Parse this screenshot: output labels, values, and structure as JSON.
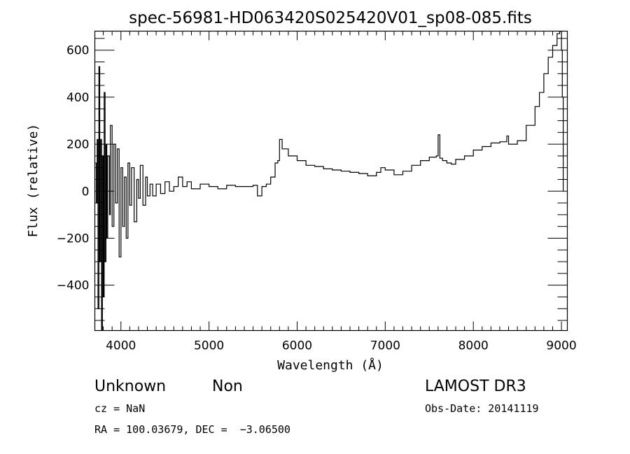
{
  "chart_data": {
    "type": "line",
    "title": "spec-56981-HD063420S025420V01_sp08-085.fits",
    "xlabel": "Wavelength (Å)",
    "ylabel": "Flux (relative)",
    "xlim": [
      3704,
      9067
    ],
    "ylim": [
      -593,
      681
    ],
    "xticks": [
      4000,
      5000,
      6000,
      7000,
      8000,
      9000
    ],
    "xtick_labels": [
      "4000",
      "5000",
      "6000",
      "7000",
      "8000",
      "9000"
    ],
    "xminor": 100,
    "yticks": [
      -400,
      -200,
      0,
      200,
      400,
      600
    ],
    "ytick_labels": [
      "−400",
      "−200",
      "0",
      "200",
      "400",
      "600"
    ],
    "yminor": 50,
    "grid": false,
    "series": [
      {
        "name": "spectrum",
        "color": "#000000",
        "x": [
          3710,
          3720,
          3730,
          3740,
          3750,
          3760,
          3770,
          3780,
          3790,
          3800,
          3810,
          3820,
          3830,
          3840,
          3850,
          3870,
          3880,
          3900,
          3920,
          3940,
          3960,
          3980,
          4000,
          4020,
          4040,
          4060,
          4080,
          4100,
          4120,
          4150,
          4180,
          4200,
          4220,
          4250,
          4280,
          4300,
          4330,
          4360,
          4400,
          4450,
          4500,
          4550,
          4600,
          4650,
          4700,
          4750,
          4800,
          4900,
          5000,
          5100,
          5200,
          5300,
          5400,
          5500,
          5550,
          5600,
          5650,
          5700,
          5750,
          5780,
          5800,
          5830,
          5900,
          6000,
          6100,
          6200,
          6300,
          6400,
          6500,
          6600,
          6700,
          6800,
          6900,
          6950,
          7000,
          7100,
          7200,
          7300,
          7400,
          7500,
          7580,
          7600,
          7620,
          7650,
          7700,
          7750,
          7800,
          7900,
          8000,
          8100,
          8200,
          8300,
          8380,
          8400,
          8500,
          8600,
          8700,
          8750,
          8800,
          8850,
          8900,
          8950,
          8980,
          9000,
          9010,
          9020
        ],
        "y": [
          120,
          -50,
          220,
          -500,
          530,
          -300,
          220,
          -590,
          150,
          -450,
          420,
          -300,
          200,
          -200,
          150,
          -100,
          280,
          -150,
          200,
          -50,
          180,
          -280,
          100,
          -150,
          60,
          -200,
          120,
          -60,
          100,
          -130,
          50,
          -30,
          110,
          -60,
          60,
          -20,
          30,
          -20,
          30,
          -10,
          40,
          0,
          20,
          60,
          20,
          40,
          10,
          30,
          20,
          10,
          25,
          20,
          20,
          25,
          -20,
          20,
          30,
          60,
          120,
          130,
          220,
          180,
          150,
          130,
          110,
          105,
          95,
          90,
          85,
          80,
          75,
          65,
          80,
          100,
          90,
          70,
          85,
          110,
          130,
          145,
          150,
          240,
          140,
          130,
          120,
          115,
          135,
          150,
          175,
          190,
          205,
          210,
          235,
          200,
          215,
          280,
          360,
          420,
          500,
          570,
          620,
          670,
          680,
          600,
          400,
          0
        ]
      }
    ]
  },
  "annotations": {
    "object_class": "Unknown",
    "subclass": "Non",
    "cz": "cz = NaN",
    "coords": "RA = 100.03679, DEC =  −3.06500",
    "survey": "LAMOST DR3",
    "obs_date": "Obs-Date: 20141119"
  }
}
